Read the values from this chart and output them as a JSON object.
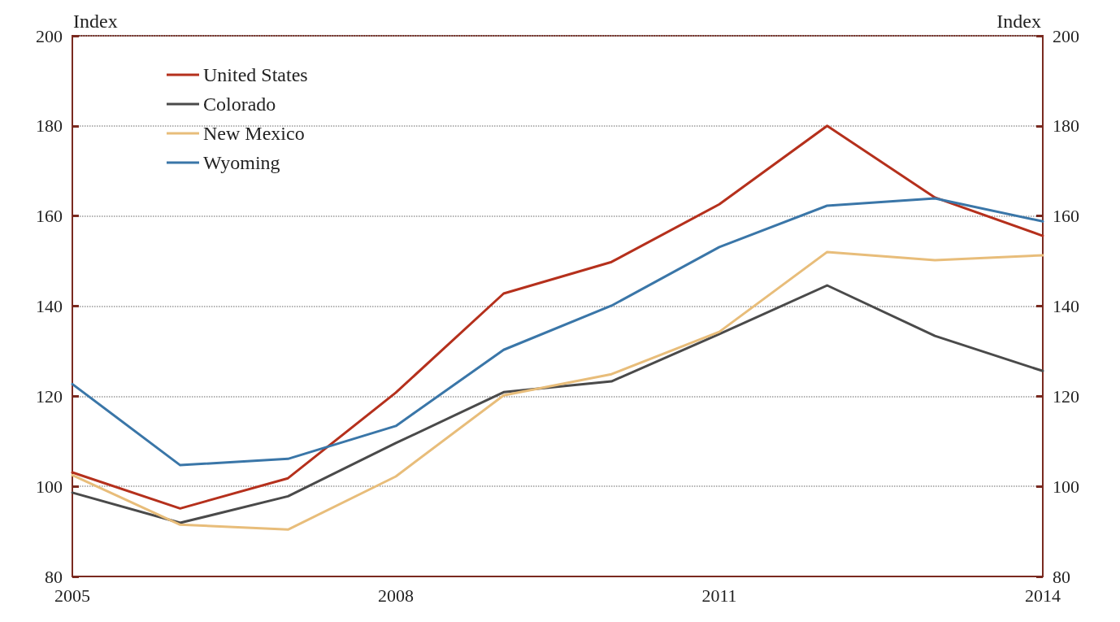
{
  "chart_data": {
    "type": "line",
    "ylabel": "Index",
    "y2label": "Index",
    "x": [
      2005,
      2006,
      2007,
      2008,
      2009,
      2010,
      2011,
      2012,
      2013,
      2014
    ],
    "xlim": [
      2005,
      2014
    ],
    "xticks": [
      2005,
      2008,
      2011,
      2014
    ],
    "ylim": [
      80,
      200
    ],
    "yticks": [
      80,
      100,
      120,
      140,
      160,
      180,
      200
    ],
    "y2lim": [
      80,
      200
    ],
    "y2ticks": [
      80,
      100,
      120,
      140,
      160,
      180,
      200
    ],
    "grid": "y",
    "legend": "top left",
    "marker": "none",
    "line_style": "solid",
    "series": [
      {
        "name": "United States",
        "color": "#b5301c",
        "values": [
          103.1,
          95.1,
          101.8,
          120.8,
          142.8,
          149.8,
          162.6,
          180,
          164.1,
          155.6
        ]
      },
      {
        "name": "Colorado",
        "color": "#4a4a4a",
        "values": [
          98.6,
          91.9,
          97.8,
          109.6,
          120.9,
          123.3,
          133.8,
          144.6,
          133.4,
          125.6
        ]
      },
      {
        "name": "New Mexico",
        "color": "#e8bd7a",
        "values": [
          102.5,
          91.5,
          90.4,
          102.2,
          120.2,
          124.9,
          134.3,
          152,
          150.2,
          151.3
        ]
      },
      {
        "name": "Wyoming",
        "color": "#3a76a8",
        "values": [
          122.7,
          104.7,
          106.1,
          113.4,
          130.3,
          140.1,
          153.1,
          162.3,
          163.9,
          158.8
        ]
      }
    ]
  }
}
